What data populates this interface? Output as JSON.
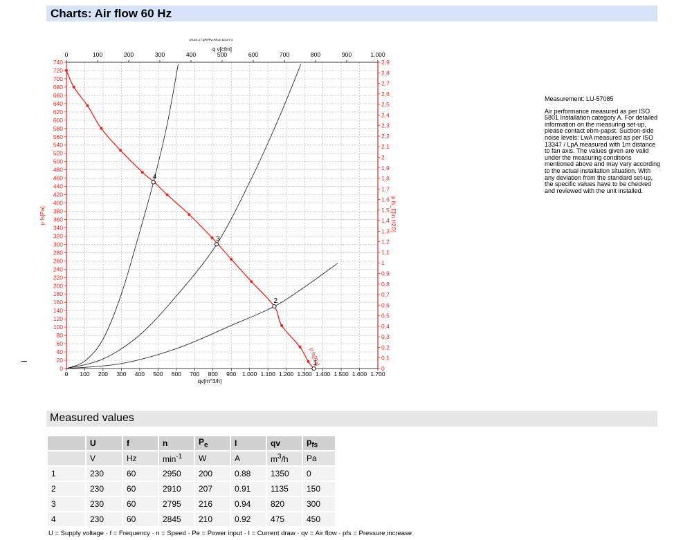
{
  "header": {
    "title": "Charts: Air flow 60 Hz"
  },
  "chart_data": {
    "type": "line",
    "chart_caption": "Druck p f qPk/Pa Rhon Lbcm^3",
    "x_bottom": {
      "label": "qv[m^3/h]",
      "min": 0,
      "max": 1700,
      "step": 100,
      "tick_labels": [
        "0",
        "100",
        "200",
        "300",
        "400",
        "500",
        "600",
        "700",
        "800",
        "900",
        "1.000",
        "1.100",
        "1.200",
        "1.300",
        "1.400",
        "1.500",
        "1.600",
        "1.700"
      ]
    },
    "x_top": {
      "label": "q v[cfm]",
      "min": 0,
      "max": 1000,
      "step": 100,
      "tick_labels": [
        "0",
        "100",
        "200",
        "300",
        "400",
        "500",
        "600",
        "700",
        "800",
        "900",
        "1.000"
      ]
    },
    "y_left": {
      "label": "p fs[Pa]",
      "min": 0,
      "max": 740,
      "step": 20,
      "tick_labels": [
        "0",
        "20",
        "40",
        "60",
        "80",
        "100",
        "120",
        "140",
        "160",
        "180",
        "200",
        "220",
        "240",
        "260",
        "280",
        "300",
        "320",
        "340",
        "360",
        "380",
        "400",
        "420",
        "440",
        "460",
        "480",
        "500",
        "520",
        "540",
        "560",
        "580",
        "600",
        "620",
        "640",
        "660",
        "680",
        "700",
        "720",
        "740"
      ]
    },
    "y_right": {
      "label": "p fs_E[in H2O]",
      "min": 0,
      "max": 2.9,
      "step": 0.1,
      "tick_labels": [
        "0",
        "0,1",
        "0,2",
        "0,3",
        "0,4",
        "0,5",
        "0,6",
        "0,7",
        "0,8",
        "0,9",
        "1",
        "1,1",
        "1,2",
        "1,3",
        "1,4",
        "1,5",
        "1,6",
        "1,7",
        "1,8",
        "1,9",
        "2",
        "2,1",
        "2,2",
        "2,3",
        "2,4",
        "2,5",
        "2,6",
        "2,7",
        "2,8",
        "2,9"
      ]
    },
    "grid": true,
    "series": [
      {
        "label_text": "p fs[Pa]",
        "color": "#e8261f",
        "markers": true,
        "x": [
          0,
          40,
          115,
          190,
          295,
          415,
          480,
          550,
          670,
          795,
          900,
          1010,
          1135,
          1175,
          1275,
          1320,
          1350
        ],
        "y": [
          720,
          680,
          635,
          580,
          527,
          474,
          450,
          420,
          372,
          316,
          264,
          210,
          150,
          104,
          52,
          17,
          0
        ]
      },
      {
        "kind": "system",
        "color": "#2b2b2b",
        "x": [
          0,
          100,
          200,
          300,
          400,
          475,
          550,
          610
        ],
        "y": [
          0,
          18,
          71,
          180,
          330,
          450,
          590,
          735
        ]
      },
      {
        "kind": "system",
        "color": "#2b2b2b",
        "x": [
          0,
          200,
          400,
          600,
          820,
          1000,
          1150,
          1280
        ],
        "y": [
          0,
          23,
          81,
          175,
          300,
          450,
          595,
          735
        ]
      },
      {
        "kind": "system",
        "color": "#2b2b2b",
        "x": [
          0,
          300,
          600,
          900,
          1135,
          1300,
          1480
        ],
        "y": [
          0,
          12,
          48,
          104,
          150,
          197,
          254
        ]
      }
    ],
    "operating_points": [
      {
        "label": "1",
        "x": 1350,
        "y": 0
      },
      {
        "label": "2",
        "x": 1135,
        "y": 150
      },
      {
        "label": "3",
        "x": 820,
        "y": 300
      },
      {
        "label": "4",
        "x": 475,
        "y": 450
      }
    ]
  },
  "info": {
    "measurement": "Measurement: LU-57085",
    "text": "Air performance measured as per ISO 5801 Installation category A. For detailed information on the measuring set-up, please contact ebm-papst. Suction-side noise levels: LwA measured as per ISO 13347 / LpA measured with 1m distance to fan axis. The values given are valid under the measuring conditions mentioned above and may vary according to the actual installation situation. With any deviation from the standard set-up, the specific values have to be checked and reviewed with the unit installed."
  },
  "measured": {
    "title": "Measured values",
    "headers": [
      "",
      "U",
      "f",
      "n",
      "P",
      "I",
      "qv",
      "p"
    ],
    "header_subs": {
      "P": "e",
      "p": "fs"
    },
    "units": [
      "",
      "V",
      "Hz",
      "min",
      "W",
      "A",
      "m",
      "Pa"
    ],
    "unit_sups": {
      "min": "-1",
      "m": "3"
    },
    "unit_suffix": {
      "m": "/h"
    },
    "rows": [
      [
        "1",
        "230",
        "60",
        "2950",
        "200",
        "0.88",
        "1350",
        "0"
      ],
      [
        "2",
        "230",
        "60",
        "2910",
        "207",
        "0.91",
        "1135",
        "150"
      ],
      [
        "3",
        "230",
        "60",
        "2795",
        "216",
        "0.94",
        "820",
        "300"
      ],
      [
        "4",
        "230",
        "60",
        "2845",
        "210",
        "0.92",
        "475",
        "450"
      ]
    ],
    "legend": "U = Supply voltage · f = Frequency · n = Speed · Pe = Power input · I = Current draw · qv = Air flow · pfs = Pressure increase"
  }
}
